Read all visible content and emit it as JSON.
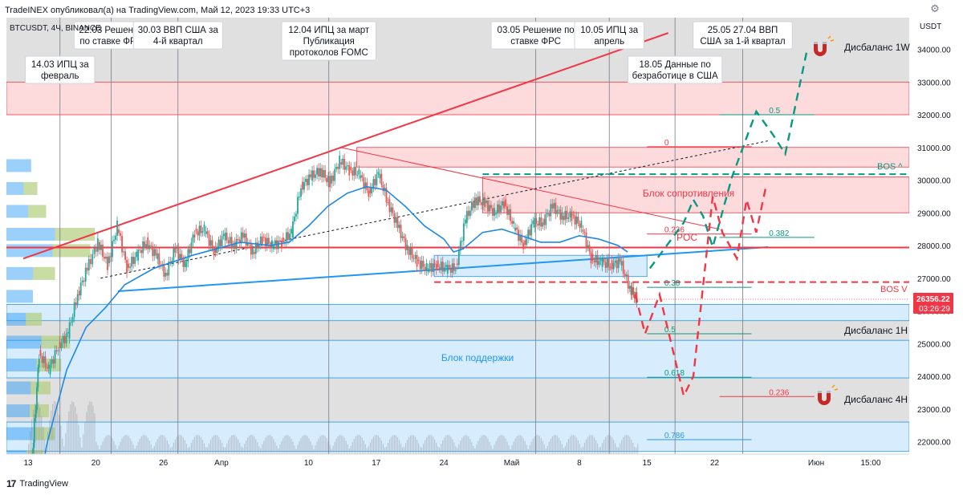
{
  "header": {
    "publish_text": "TradeINEX опубликовал(а) на TradingView.com, Май 12, 2023 19:33 UTC+3",
    "symbol_text": "BTCUSDT, 4Ч, BINANCE",
    "axis_currency": "USDT"
  },
  "footer": {
    "brand": "TradingView",
    "logo_text": "17"
  },
  "icons": {
    "settings": "gear-icon",
    "magnet": "magnet-icon",
    "logo": "tradingview-logo-icon"
  },
  "colors": {
    "resistance": "#f23645",
    "support": "#2196f3",
    "ma": "#1e88e5",
    "bull_path": "#089981",
    "bear_path": "#f23645",
    "candle_up": "#26a69a",
    "candle_down": "#ef5350",
    "price_tag": "#f23645"
  },
  "chart_data": {
    "type": "candlestick",
    "symbol": "BTCUSDT",
    "timeframe": "4Ч",
    "exchange": "BINANCE",
    "y_axis": {
      "range": [
        21500,
        35000
      ],
      "ticks": [
        "34000.00",
        "33000.00",
        "32000.00",
        "31000.00",
        "30000.00",
        "29000.00",
        "28000.00",
        "27000.00",
        "26000.00",
        "25000.00",
        "24000.00",
        "23000.00",
        "22000.00"
      ]
    },
    "x_axis": {
      "range_days": [
        12.5,
        91
      ],
      "ticks": [
        {
          "day": 13,
          "label": "13"
        },
        {
          "day": 20,
          "label": "20"
        },
        {
          "day": 27,
          "label": "26"
        },
        {
          "day": 33,
          "label": "Апр"
        },
        {
          "day": 42,
          "label": "10"
        },
        {
          "day": 49,
          "label": "17"
        },
        {
          "day": 56,
          "label": "24"
        },
        {
          "day": 63,
          "label": "Май"
        },
        {
          "day": 70,
          "label": "8"
        },
        {
          "day": 77,
          "label": "15"
        },
        {
          "day": 84,
          "label": "22"
        },
        {
          "day": 92,
          "label": "Июн"
        },
        {
          "day": 98,
          "label": "15:00"
        }
      ]
    },
    "current_price": {
      "value": 26356.22,
      "label": "26356.22",
      "countdown": "03:26:29"
    },
    "price_path": [
      [
        12.8,
        20100
      ],
      [
        13.5,
        21500
      ],
      [
        14.2,
        24700
      ],
      [
        15.2,
        24200
      ],
      [
        16.2,
        24900
      ],
      [
        17.2,
        25300
      ],
      [
        18.2,
        26500
      ],
      [
        19.2,
        27300
      ],
      [
        20.3,
        28100
      ],
      [
        21.3,
        27400
      ],
      [
        22.3,
        28600
      ],
      [
        23.3,
        27300
      ],
      [
        24.3,
        27700
      ],
      [
        25.3,
        28100
      ],
      [
        26.3,
        27700
      ],
      [
        27.3,
        27100
      ],
      [
        28.3,
        27900
      ],
      [
        29.3,
        27400
      ],
      [
        30.3,
        28400
      ],
      [
        31.3,
        28500
      ],
      [
        32.3,
        27800
      ],
      [
        33.3,
        28300
      ],
      [
        34.3,
        28000
      ],
      [
        35.3,
        28300
      ],
      [
        36.3,
        27800
      ],
      [
        37.3,
        28200
      ],
      [
        38.3,
        28000
      ],
      [
        39.3,
        28100
      ],
      [
        40.3,
        28400
      ],
      [
        41.3,
        29800
      ],
      [
        42.3,
        30100
      ],
      [
        43.3,
        30300
      ],
      [
        44.3,
        29900
      ],
      [
        45.3,
        30600
      ],
      [
        46.3,
        30300
      ],
      [
        47.3,
        30200
      ],
      [
        48.3,
        29600
      ],
      [
        49.3,
        30200
      ],
      [
        50.3,
        29300
      ],
      [
        51.3,
        28600
      ],
      [
        52.3,
        27900
      ],
      [
        53.3,
        27500
      ],
      [
        54.3,
        27300
      ],
      [
        55.3,
        27400
      ],
      [
        56.3,
        27300
      ],
      [
        57.3,
        27300
      ],
      [
        58.3,
        28800
      ],
      [
        59.3,
        29400
      ],
      [
        60.3,
        29300
      ],
      [
        61.3,
        29000
      ],
      [
        62.3,
        29300
      ],
      [
        63.3,
        28600
      ],
      [
        64.3,
        28000
      ],
      [
        65.3,
        28700
      ],
      [
        66.3,
        28700
      ],
      [
        67.3,
        29200
      ],
      [
        68.3,
        28900
      ],
      [
        69.3,
        28900
      ],
      [
        70.3,
        28600
      ],
      [
        71.3,
        27600
      ],
      [
        72.3,
        27500
      ],
      [
        73.3,
        27400
      ],
      [
        74.3,
        27500
      ],
      [
        75.3,
        26700
      ],
      [
        76,
        26356
      ]
    ],
    "ma_path": [
      [
        13.7,
        19800
      ],
      [
        15,
        22000
      ],
      [
        17,
        24200
      ],
      [
        19,
        25500
      ],
      [
        21,
        26100
      ],
      [
        23,
        26800
      ],
      [
        26,
        27300
      ],
      [
        30,
        27700
      ],
      [
        35,
        28100
      ],
      [
        38,
        28000
      ],
      [
        40,
        28100
      ],
      [
        42,
        28600
      ],
      [
        44,
        29200
      ],
      [
        46,
        29600
      ],
      [
        48,
        29800
      ],
      [
        50,
        29700
      ],
      [
        52,
        29200
      ],
      [
        54,
        28600
      ],
      [
        56,
        28200
      ],
      [
        57,
        27800
      ],
      [
        58,
        27900
      ],
      [
        60,
        28400
      ],
      [
        62,
        28500
      ],
      [
        64,
        28300
      ],
      [
        66,
        28100
      ],
      [
        68,
        28100
      ],
      [
        70,
        28300
      ],
      [
        72,
        28200
      ],
      [
        74,
        28000
      ],
      [
        75,
        27800
      ]
    ],
    "zones": [
      {
        "name": "upper-resistance",
        "from": 32000,
        "to": 33000,
        "d1": 12.5,
        "d2": 91,
        "kind": "resistance"
      },
      {
        "name": "top-resistance",
        "from": 30400,
        "to": 31000,
        "d1": 47,
        "d2": 91,
        "kind": "resistance"
      },
      {
        "name": "resistance-block",
        "from": 29000,
        "to": 30100,
        "d1": 60,
        "d2": 91,
        "kind": "resistance"
      },
      {
        "name": "support-box",
        "from": 27050,
        "to": 27700,
        "d1": 55,
        "d2": 77,
        "kind": "support"
      },
      {
        "name": "support-thin",
        "from": 25700,
        "to": 26200,
        "d1": 12.5,
        "d2": 91,
        "kind": "support"
      },
      {
        "name": "support-block",
        "from": 23950,
        "to": 25100,
        "d1": 12.5,
        "d2": 91,
        "kind": "support"
      },
      {
        "name": "support-bottom",
        "from": 21700,
        "to": 22600,
        "d1": 12.5,
        "d2": 91,
        "kind": "support"
      }
    ],
    "grey_bands": [
      {
        "from": 33000,
        "to": 35000
      },
      {
        "from": 25100,
        "to": 25700
      },
      {
        "from": 22600,
        "to": 23950
      }
    ],
    "trendlines": [
      {
        "name": "rising-resistance",
        "points": [
          [
            12.5,
            27600
          ],
          [
            79.2,
            34500
          ]
        ],
        "color": "#f23645",
        "width": 2,
        "dash": false
      },
      {
        "name": "rising-support",
        "points": [
          [
            22.3,
            26600
          ],
          [
            89.5,
            27950
          ]
        ],
        "color": "#2196f3",
        "width": 2,
        "dash": false
      },
      {
        "name": "descending-trend",
        "points": [
          [
            45.3,
            31000
          ],
          [
            84.5,
            28500
          ]
        ],
        "color": "#f23645",
        "width": 1,
        "dash": false
      },
      {
        "name": "dotted-channel",
        "points": [
          [
            20.5,
            27000
          ],
          [
            89.5,
            31200
          ]
        ],
        "color": "#131722",
        "width": 1,
        "dash": true
      }
    ],
    "levels": [
      {
        "name": "poc",
        "value": 27940,
        "d1": 12.5,
        "d2": 91,
        "color": "#f23645",
        "width": 2,
        "dash": false
      },
      {
        "name": "bos-up",
        "value": 30180,
        "d1": 60,
        "d2": 91,
        "color": "#089981",
        "width": 2,
        "dash": true
      },
      {
        "name": "bos-down",
        "value": 26880,
        "d1": 55,
        "d2": 91,
        "color": "#f23645",
        "width": 2,
        "dash": true
      }
    ],
    "fibonacci": [
      {
        "label": "0",
        "value": 31020,
        "d1": 77,
        "d2": 84.5,
        "color": "#f23645"
      },
      {
        "label": "0.236",
        "value": 28350,
        "d1": 77,
        "d2": 84.5,
        "color": "#f23645"
      },
      {
        "label": "0.38",
        "value": 26720,
        "d1": 77,
        "d2": 84.5,
        "color": "#089981"
      },
      {
        "label": "0.5",
        "value": 25300,
        "d1": 77,
        "d2": 84.5,
        "color": "#089981"
      },
      {
        "label": "0.618",
        "value": 23970,
        "d1": 77,
        "d2": 84.5,
        "color": "#089981"
      },
      {
        "label": "0.786",
        "value": 22060,
        "d1": 77,
        "d2": 84.5,
        "color": "#2196f3"
      },
      {
        "label": "0.5",
        "value": 32000,
        "d1": 84.5,
        "d2": 91,
        "color": "#089981"
      },
      {
        "label": "0.382",
        "value": 28250,
        "d1": 84.5,
        "d2": 91,
        "color": "#089981"
      },
      {
        "label": "0.236",
        "value": 23380,
        "d1": 84.5,
        "d2": 91,
        "color": "#f23645"
      }
    ],
    "projections": [
      {
        "name": "bull-path",
        "color": "#089981",
        "points": [
          [
            77.3,
            27300
          ],
          [
            80.8,
            28700
          ],
          [
            81.8,
            29400
          ],
          [
            82.8,
            28900
          ],
          [
            83.8,
            27950
          ],
          [
            85.8,
            30100
          ],
          [
            88.3,
            32100
          ],
          [
            90,
            31400
          ],
          [
            91.3,
            30800
          ],
          [
            93.5,
            33900
          ]
        ]
      },
      {
        "name": "bear-path",
        "color": "#f23645",
        "points": [
          [
            75.8,
            26500
          ],
          [
            76.8,
            25300
          ],
          [
            78.3,
            26500
          ],
          [
            80.8,
            23400
          ],
          [
            81.8,
            24000
          ],
          [
            83.8,
            29500
          ],
          [
            84.8,
            28400
          ],
          [
            86.3,
            27600
          ],
          [
            87.3,
            29400
          ],
          [
            88.3,
            28400
          ],
          [
            89.3,
            29800
          ]
        ]
      }
    ],
    "event_lines": [
      {
        "day": 16.3,
        "label": "14.03 ИПЦ за февраль",
        "lines": [
          "14.03 ИПЦ за",
          "февраль"
        ],
        "box_top": 70
      },
      {
        "day": 21.6,
        "label": "22.03 Решение по ставке ФРС",
        "lines": [
          "22.03 Решение",
          "по ставке ФРС"
        ],
        "box_top": 27
      },
      {
        "day": 28.5,
        "label": "30.03 ВВП США за 4-й квартал",
        "lines": [
          "30.03 ВВП США за",
          "4-й квартал"
        ],
        "box_top": 27
      },
      {
        "day": 44.1,
        "label": "12.04 ИПЦ за март Публикация протоколов FOMC",
        "lines": [
          "12.04 ИПЦ за март",
          "Публикация",
          "протоколов FOMC"
        ],
        "box_top": 27
      },
      {
        "day": 65.5,
        "label": "03.05 Решение по ставке ФРС",
        "lines": [
          "03.05 Решение по",
          "ставке ФРС"
        ],
        "box_top": 27
      },
      {
        "day": 73.1,
        "label": "10.05 ИПЦ за апрель",
        "lines": [
          "10.05 ИПЦ за",
          "апрель"
        ],
        "box_top": 27
      },
      {
        "day": 79.9,
        "label": "18.05 Данные по безработице в США",
        "lines": [
          "18.05 Данные по",
          "безработице в США"
        ],
        "box_top": 70
      },
      {
        "day": 86.9,
        "label": "25.05 27.04 ВВП США за 1-й квартал",
        "lines": [
          "25.05 27.04 ВВП",
          "США за 1-й квартал"
        ],
        "box_top": 27
      }
    ],
    "annotations": {
      "resistance_block": "Блок сопротивления",
      "support_block": "Блок поддержки",
      "poc": "POC",
      "bos_up": "BOS ^",
      "bos_down": "BOS V",
      "imbalance_1w": "Дисбаланс 1W",
      "imbalance_1h": "Дисбаланс 1H",
      "imbalance_4h": "Дисбаланс 4H"
    },
    "volume_profile": [
      {
        "price": 20700,
        "width": 0.32
      },
      {
        "price": 21400,
        "width": 0.42
      },
      {
        "price": 22100,
        "width": 0.55
      },
      {
        "price": 22800,
        "width": 0.48
      },
      {
        "price": 23500,
        "width": 0.5
      },
      {
        "price": 24200,
        "width": 0.62
      },
      {
        "price": 24900,
        "width": 0.72
      },
      {
        "price": 25600,
        "width": 0.4
      },
      {
        "price": 26300,
        "width": 0.3
      },
      {
        "price": 27000,
        "width": 0.55
      },
      {
        "price": 27700,
        "width": 0.95
      },
      {
        "price": 28200,
        "width": 1.0
      },
      {
        "price": 28900,
        "width": 0.45
      },
      {
        "price": 29600,
        "width": 0.35
      },
      {
        "price": 30300,
        "width": 0.28
      }
    ]
  }
}
